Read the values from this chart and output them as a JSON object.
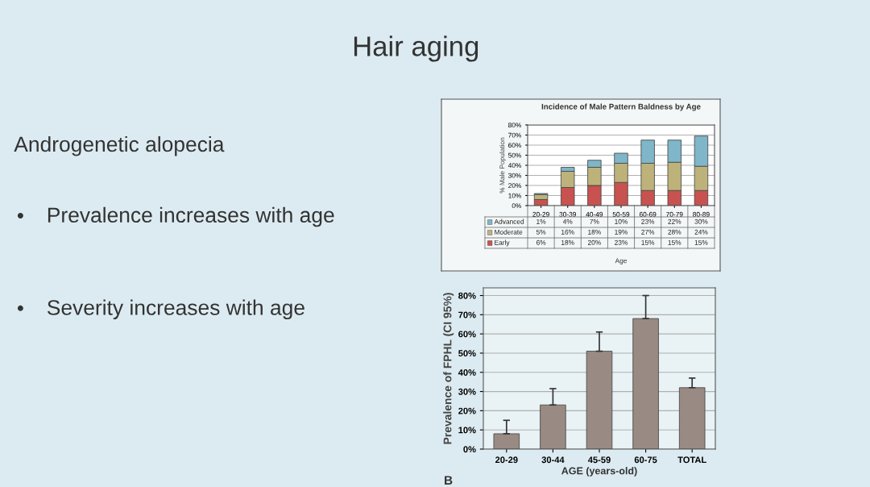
{
  "chart_data": [
    {
      "type": "other",
      "title": "Hair aging",
      "annotations": [
        "Androgenetic alopecia",
        "Prevalence increases with age",
        "Severity increases with age"
      ]
    },
    {
      "type": "bar",
      "title": "Incidence of Male Pattern Baldness by Age",
      "xlabel": "Age",
      "ylabel": "% Male Population",
      "categories": [
        "20-29",
        "30-39",
        "40-49",
        "50-59",
        "60-69",
        "70-79",
        "80-89"
      ],
      "stacked": true,
      "legend": "bottom",
      "grid": "y",
      "ylim": [
        0,
        80
      ],
      "yticks": [
        {
          "value": 0,
          "label": "0%"
        },
        {
          "value": 10,
          "label": "10%"
        },
        {
          "value": 20,
          "label": "20%"
        },
        {
          "value": 30,
          "label": "30%"
        },
        {
          "value": 40,
          "label": "40%"
        },
        {
          "value": 50,
          "label": "50%"
        },
        {
          "value": 60,
          "label": "60%"
        },
        {
          "value": 70,
          "label": "70%"
        },
        {
          "value": 80,
          "label": "80%"
        }
      ],
      "series": [
        {
          "name": "Early",
          "color": "#c8524f",
          "values": [
            6,
            18,
            20,
            23,
            15,
            15,
            15
          ],
          "value_labels": [
            "6%",
            "18%",
            "20%",
            "23%",
            "15%",
            "15%",
            "15%"
          ]
        },
        {
          "name": "Moderate",
          "color": "#bdb37a",
          "values": [
            5,
            16,
            18,
            19,
            27,
            28,
            24
          ],
          "value_labels": [
            "5%",
            "16%",
            "18%",
            "19%",
            "27%",
            "28%",
            "24%"
          ]
        },
        {
          "name": "Advanced",
          "color": "#7fb6c9",
          "values": [
            1,
            4,
            7,
            10,
            23,
            22,
            30
          ],
          "value_labels": [
            "1%",
            "4%",
            "7%",
            "10%",
            "23%",
            "22%",
            "30%"
          ]
        }
      ]
    },
    {
      "type": "bar",
      "xlabel": "AGE (years-old)",
      "ylabel": "Prevalence of FPHL (CI 95%)",
      "categories": [
        "20-29",
        "30-44",
        "45-59",
        "60-75",
        "TOTAL"
      ],
      "grid": "y",
      "values": [
        8,
        23,
        51,
        68,
        32
      ],
      "color": "#998a83",
      "errors": [
        [
          8,
          15
        ],
        [
          23,
          31.5
        ],
        [
          51,
          61
        ],
        [
          68,
          80
        ],
        [
          32,
          37
        ]
      ],
      "ylim": [
        0,
        84
      ],
      "yticks": [
        {
          "value": 0,
          "label": "0%"
        },
        {
          "value": 10,
          "label": "10%"
        },
        {
          "value": 20,
          "label": "20%"
        },
        {
          "value": 30,
          "label": "30%"
        },
        {
          "value": 40,
          "label": "40%"
        },
        {
          "value": 50,
          "label": "50%"
        },
        {
          "value": 60,
          "label": "60%"
        },
        {
          "value": 70,
          "label": "70%"
        },
        {
          "value": 80,
          "label": "80%"
        }
      ],
      "annotations": [
        "B"
      ]
    }
  ]
}
